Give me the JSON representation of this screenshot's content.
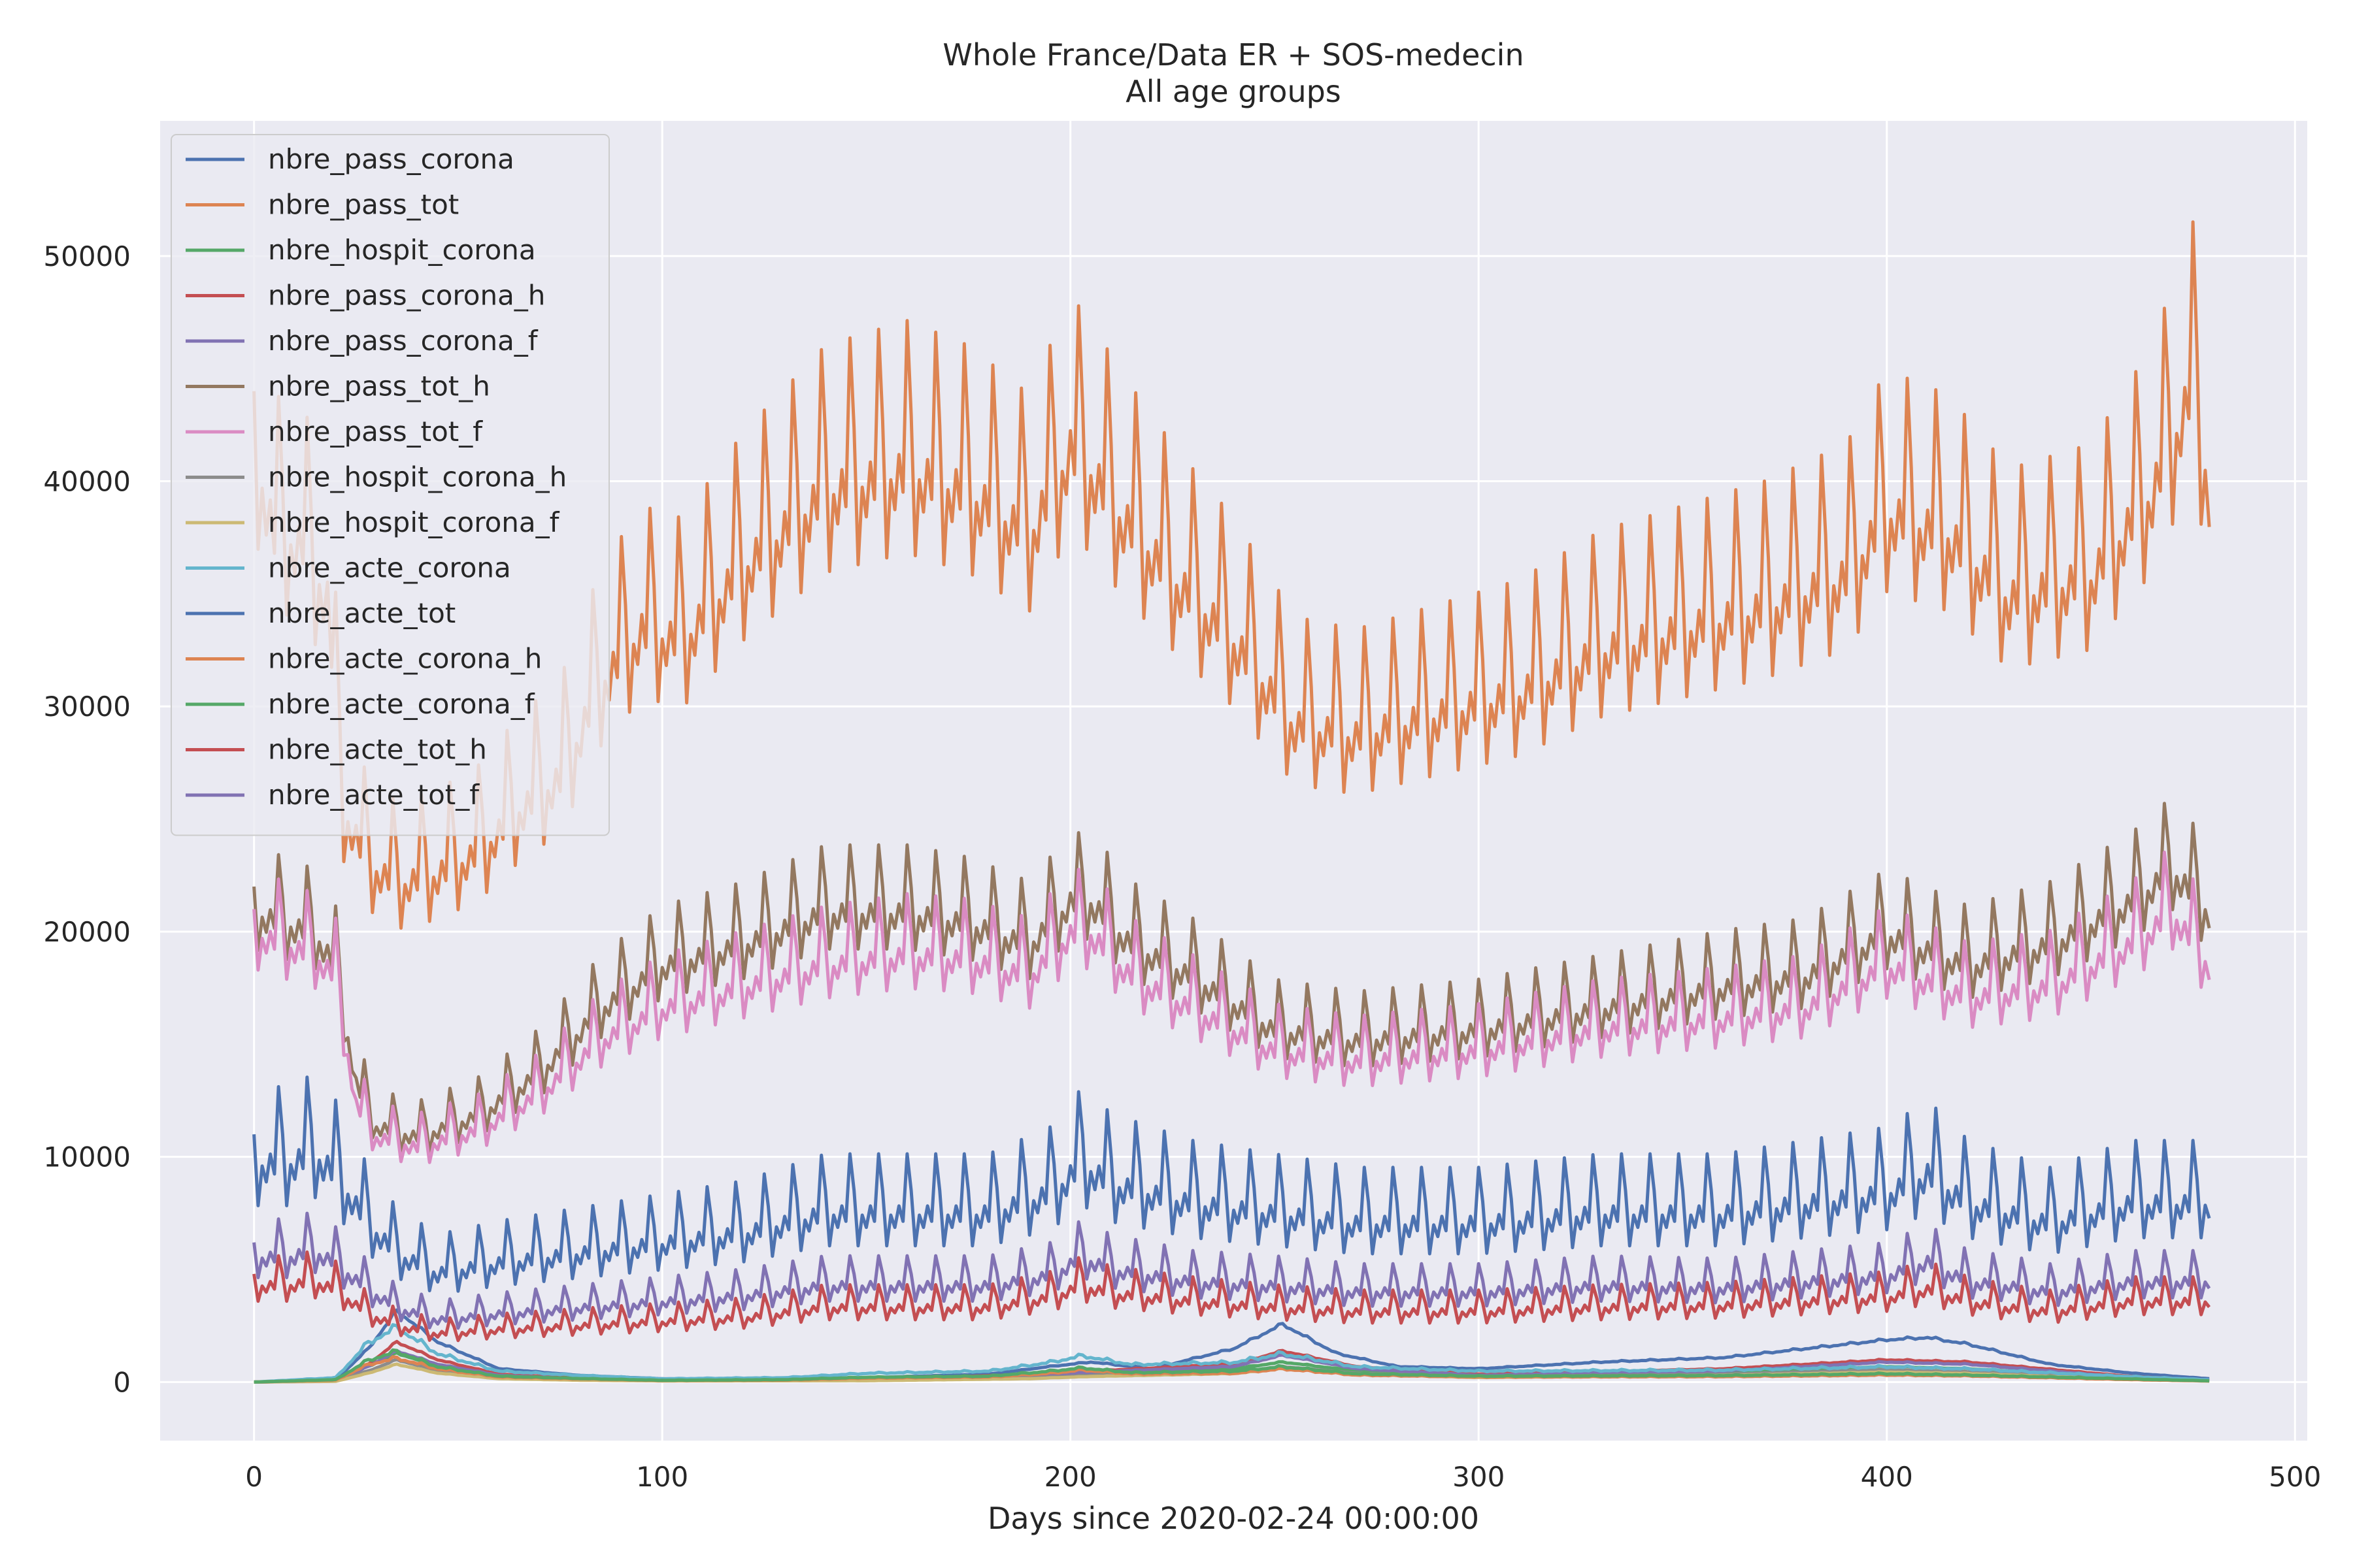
{
  "chart_data": {
    "type": "line",
    "title": "Whole France/Data ER + SOS-medecin",
    "subtitle": "All age groups",
    "xlabel": "Days since 2020-02-24 00:00:00",
    "ylabel": "",
    "xlim": [
      -23,
      503
    ],
    "ylim": [
      -2600,
      56000
    ],
    "xticks": [
      0,
      100,
      200,
      300,
      400,
      500
    ],
    "yticks": [
      0,
      10000,
      20000,
      30000,
      40000,
      50000
    ],
    "grid": true,
    "legend_position": "top-left",
    "series": [
      {
        "name": "nbre_pass_corona",
        "color": "#4c72b0",
        "period": 7,
        "amp": 0.02,
        "x": [
          0,
          20,
          28,
          35,
          45,
          60,
          80,
          100,
          120,
          150,
          180,
          195,
          205,
          220,
          240,
          252,
          265,
          280,
          300,
          330,
          360,
          380,
          400,
          410,
          420,
          440,
          460,
          479
        ],
        "y": [
          0,
          100,
          1500,
          3200,
          1800,
          600,
          300,
          150,
          120,
          200,
          350,
          700,
          900,
          600,
          1500,
          2600,
          1300,
          700,
          600,
          900,
          1100,
          1500,
          1900,
          2000,
          1700,
          800,
          400,
          150
        ]
      },
      {
        "name": "nbre_pass_tot",
        "color": "#dd8452",
        "period": 7,
        "amp": 0.08,
        "x": [
          0,
          5,
          12,
          18,
          22,
          28,
          35,
          45,
          55,
          65,
          75,
          85,
          95,
          105,
          120,
          140,
          160,
          175,
          190,
          200,
          205,
          212,
          225,
          240,
          255,
          270,
          290,
          310,
          330,
          350,
          370,
          390,
          400,
          415,
          430,
          450,
          465,
          475,
          479
        ],
        "y": [
          44000,
          40000,
          39500,
          37000,
          27000,
          24500,
          23500,
          24000,
          25000,
          27000,
          28500,
          33000,
          35500,
          35000,
          38500,
          42000,
          43000,
          42000,
          40000,
          44000,
          43000,
          41000,
          38000,
          35000,
          31000,
          30500,
          31500,
          32500,
          34500,
          35500,
          36500,
          38000,
          41000,
          40000,
          37000,
          38000,
          42000,
          47000,
          42000
        ]
      },
      {
        "name": "nbre_hospit_corona",
        "color": "#55a868",
        "period": 7,
        "amp": 0.02,
        "x": [
          0,
          20,
          28,
          35,
          45,
          60,
          80,
          100,
          150,
          190,
          205,
          240,
          252,
          270,
          300,
          360,
          400,
          420,
          460,
          479
        ],
        "y": [
          0,
          50,
          700,
          1300,
          700,
          250,
          120,
          80,
          90,
          250,
          400,
          600,
          900,
          500,
          300,
          450,
          700,
          600,
          200,
          80
        ]
      },
      {
        "name": "nbre_pass_corona_h",
        "color": "#c44e52",
        "period": 7,
        "amp": 0.02,
        "x": [
          0,
          20,
          28,
          35,
          45,
          60,
          80,
          100,
          150,
          190,
          205,
          240,
          252,
          270,
          300,
          360,
          400,
          420,
          460,
          479
        ],
        "y": [
          0,
          60,
          800,
          1800,
          1000,
          350,
          170,
          90,
          110,
          350,
          500,
          800,
          1400,
          700,
          350,
          600,
          1000,
          900,
          250,
          90
        ]
      },
      {
        "name": "nbre_pass_corona_f",
        "color": "#8172b3",
        "period": 7,
        "amp": 0.02,
        "x": [
          0,
          20,
          28,
          35,
          45,
          60,
          80,
          100,
          150,
          190,
          205,
          240,
          252,
          270,
          300,
          360,
          400,
          420,
          460,
          479
        ],
        "y": [
          0,
          50,
          700,
          1400,
          800,
          300,
          140,
          70,
          100,
          300,
          450,
          700,
          1200,
          600,
          300,
          500,
          900,
          800,
          200,
          70
        ]
      },
      {
        "name": "nbre_pass_tot_h",
        "color": "#937860",
        "period": 7,
        "amp": 0.07,
        "x": [
          0,
          15,
          20,
          25,
          30,
          40,
          55,
          70,
          85,
          100,
          120,
          140,
          160,
          175,
          190,
          200,
          205,
          215,
          230,
          250,
          270,
          300,
          330,
          360,
          380,
          400,
          420,
          440,
          460,
          470,
          479
        ],
        "y": [
          22000,
          21000,
          19500,
          14000,
          12000,
          11500,
          12500,
          14500,
          17500,
          19500,
          20500,
          22000,
          22000,
          21500,
          20500,
          22500,
          22500,
          20500,
          19000,
          16500,
          16000,
          16500,
          17500,
          18500,
          19000,
          21000,
          19500,
          20500,
          22500,
          24000,
          22000
        ]
      },
      {
        "name": "nbre_pass_tot_f",
        "color": "#da8bc3",
        "period": 7,
        "amp": 0.07,
        "x": [
          0,
          15,
          20,
          25,
          30,
          40,
          55,
          70,
          85,
          100,
          120,
          140,
          160,
          175,
          190,
          200,
          205,
          215,
          230,
          250,
          270,
          300,
          330,
          360,
          380,
          400,
          420,
          440,
          460,
          470,
          479
        ],
        "y": [
          21000,
          20000,
          19000,
          13000,
          11500,
          11000,
          11800,
          13500,
          16000,
          17500,
          18500,
          19500,
          20000,
          19800,
          19000,
          21000,
          21000,
          19000,
          17500,
          15500,
          15000,
          15500,
          16500,
          17000,
          17500,
          19500,
          18000,
          18500,
          20500,
          22000,
          19500
        ]
      },
      {
        "name": "nbre_hospit_corona_h",
        "color": "#8c8c8c",
        "period": 7,
        "amp": 0.02,
        "x": [
          0,
          20,
          28,
          35,
          45,
          60,
          80,
          100,
          150,
          190,
          205,
          240,
          252,
          270,
          300,
          360,
          400,
          420,
          460,
          479
        ],
        "y": [
          0,
          40,
          500,
          1000,
          500,
          180,
          90,
          60,
          70,
          180,
          300,
          450,
          700,
          400,
          250,
          350,
          550,
          450,
          150,
          60
        ]
      },
      {
        "name": "nbre_hospit_corona_f",
        "color": "#ccb974",
        "period": 7,
        "amp": 0.02,
        "x": [
          0,
          20,
          28,
          35,
          45,
          60,
          80,
          100,
          150,
          190,
          205,
          240,
          252,
          270,
          300,
          360,
          400,
          420,
          460,
          479
        ],
        "y": [
          0,
          30,
          400,
          800,
          400,
          150,
          80,
          50,
          60,
          150,
          250,
          380,
          600,
          350,
          200,
          300,
          450,
          380,
          120,
          50
        ]
      },
      {
        "name": "nbre_acte_corona",
        "color": "#64b5cd",
        "period": 7,
        "amp": 0.05,
        "x": [
          0,
          20,
          28,
          35,
          45,
          60,
          80,
          100,
          130,
          150,
          180,
          195,
          203,
          215,
          240,
          252,
          270,
          300,
          360,
          400,
          420,
          460,
          479
        ],
        "y": [
          0,
          200,
          1800,
          2500,
          1300,
          500,
          300,
          150,
          200,
          400,
          500,
          900,
          1200,
          800,
          900,
          1300,
          700,
          500,
          550,
          700,
          600,
          250,
          100
        ]
      },
      {
        "name": "nbre_acte_tot",
        "color": "#4c72b0",
        "period": 7,
        "amp": 0.16,
        "x": [
          0,
          8,
          15,
          20,
          28,
          35,
          45,
          60,
          80,
          100,
          120,
          140,
          160,
          180,
          195,
          203,
          210,
          230,
          250,
          270,
          300,
          330,
          360,
          380,
          400,
          410,
          420,
          430,
          440,
          460,
          479
        ],
        "y": [
          11000,
          11000,
          11500,
          10500,
          8000,
          6500,
          5500,
          6000,
          6500,
          7000,
          7500,
          8500,
          8500,
          8500,
          9500,
          11000,
          10000,
          9000,
          8500,
          8000,
          8000,
          8500,
          8500,
          9000,
          9500,
          10500,
          9000,
          8500,
          8000,
          9000,
          9000
        ]
      },
      {
        "name": "nbre_acte_corona_h",
        "color": "#dd8452",
        "period": 7,
        "amp": 0.05,
        "x": [
          0,
          20,
          28,
          35,
          45,
          60,
          80,
          100,
          130,
          150,
          180,
          195,
          203,
          215,
          240,
          252,
          270,
          300,
          360,
          400,
          420,
          460,
          479
        ],
        "y": [
          0,
          90,
          800,
          1100,
          600,
          230,
          140,
          70,
          90,
          180,
          230,
          400,
          550,
          370,
          400,
          600,
          320,
          230,
          250,
          320,
          280,
          110,
          45
        ]
      },
      {
        "name": "nbre_acte_corona_f",
        "color": "#55a868",
        "period": 7,
        "amp": 0.05,
        "x": [
          0,
          20,
          28,
          35,
          45,
          60,
          80,
          100,
          130,
          150,
          180,
          195,
          203,
          215,
          240,
          252,
          270,
          300,
          360,
          400,
          420,
          460,
          479
        ],
        "y": [
          0,
          110,
          1000,
          1400,
          700,
          270,
          160,
          80,
          110,
          220,
          270,
          500,
          650,
          430,
          500,
          700,
          380,
          270,
          300,
          380,
          320,
          140,
          55
        ]
      },
      {
        "name": "nbre_acte_tot_h",
        "color": "#c44e52",
        "period": 7,
        "amp": 0.14,
        "x": [
          0,
          8,
          15,
          20,
          28,
          35,
          45,
          60,
          80,
          100,
          120,
          140,
          160,
          180,
          195,
          203,
          210,
          230,
          250,
          270,
          300,
          330,
          360,
          380,
          400,
          410,
          420,
          430,
          440,
          460,
          479
        ],
        "y": [
          4800,
          4800,
          5000,
          4600,
          3400,
          2800,
          2400,
          2600,
          2800,
          3000,
          3200,
          3700,
          3700,
          3700,
          4200,
          4800,
          4400,
          4000,
          3700,
          3500,
          3500,
          3700,
          3800,
          4000,
          4200,
          4600,
          4000,
          3700,
          3500,
          4000,
          4000
        ]
      },
      {
        "name": "nbre_acte_tot_f",
        "color": "#8172b3",
        "period": 7,
        "amp": 0.14,
        "x": [
          0,
          8,
          15,
          20,
          28,
          35,
          45,
          60,
          80,
          100,
          120,
          140,
          160,
          180,
          195,
          203,
          210,
          230,
          250,
          270,
          300,
          330,
          360,
          380,
          400,
          410,
          420,
          430,
          440,
          460,
          479
        ],
        "y": [
          6200,
          6200,
          6500,
          5900,
          4600,
          3700,
          3100,
          3400,
          3700,
          4000,
          4300,
          4800,
          4800,
          4800,
          5300,
          6200,
          5600,
          5000,
          4800,
          4500,
          4500,
          4800,
          4700,
          5000,
          5300,
          6000,
          5000,
          4800,
          4500,
          5000,
          5000
        ]
      }
    ]
  }
}
